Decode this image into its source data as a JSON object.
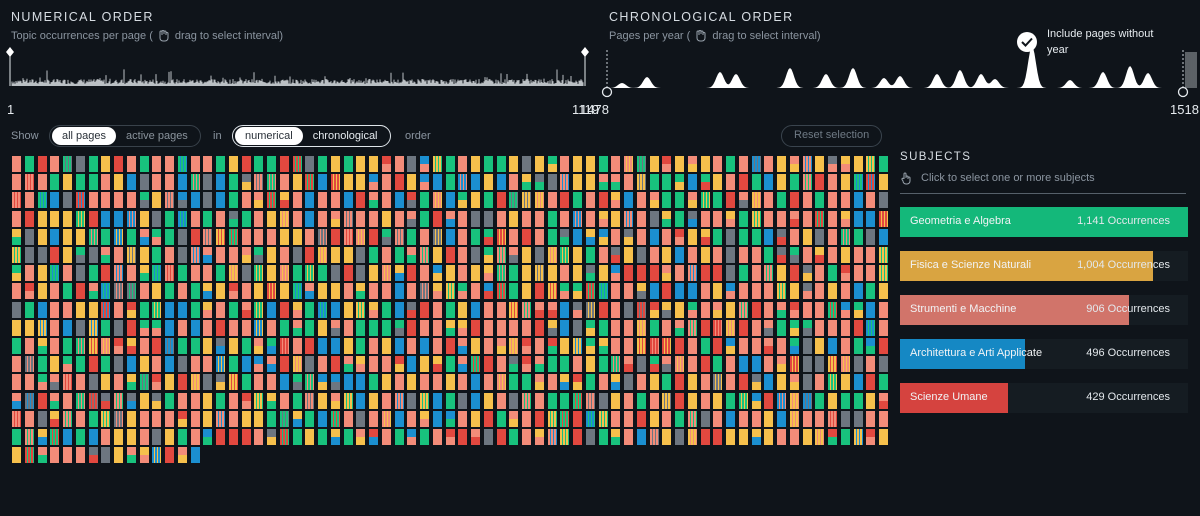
{
  "numerical": {
    "title": "NUMERICAL ORDER",
    "subtitle_pre": "Topic occurrences per page (",
    "subtitle_post": "drag to select interval)",
    "range_start": "1",
    "range_end": "1119"
  },
  "chronological": {
    "title": "CHRONOLOGICAL ORDER",
    "subtitle_pre": "Pages per year (",
    "subtitle_post": "drag to select interval)",
    "range_start": "1478",
    "range_end": "1518",
    "include_label_line1": "Include pages without",
    "include_label_line2": "year",
    "include_checked": true
  },
  "controls": {
    "show_label": "Show",
    "show_options": [
      "all pages",
      "active pages"
    ],
    "show_selected": "all pages",
    "in_label": "in",
    "order_options": [
      "numerical",
      "chronological"
    ],
    "order_selected": "numerical",
    "order_label": "order",
    "reset_label": "Reset selection"
  },
  "subjects": {
    "title": "SUBJECTS",
    "hint": "Click to select one or more subjects",
    "items": [
      {
        "name": "Geometria e Algebra",
        "count": "1,141 Occurrences",
        "color": "#14b87a",
        "value": 1141
      },
      {
        "name": "Fisica e Scienze Naturali",
        "count": "1,004 Occurrences",
        "color": "#d9a441",
        "value": 1004
      },
      {
        "name": "Strumenti e Macchine",
        "count": "906 Occurrences",
        "color": "#d1746a",
        "value": 906
      },
      {
        "name": "Architettura e Arti Applicate",
        "count": "496 Occurrences",
        "color": "#1588c4",
        "value": 496
      },
      {
        "name": "Scienze Umane",
        "count": "429 Occurrences",
        "color": "#d5433f",
        "value": 429
      }
    ]
  },
  "page_grid": {
    "total_pages": 1119,
    "colors": {
      "green": "#18c27d",
      "yellow": "#f6c04c",
      "salmon": "#f38c79",
      "blue": "#1b8fd0",
      "red": "#e2483f",
      "gray": "#6d7680"
    }
  }
}
